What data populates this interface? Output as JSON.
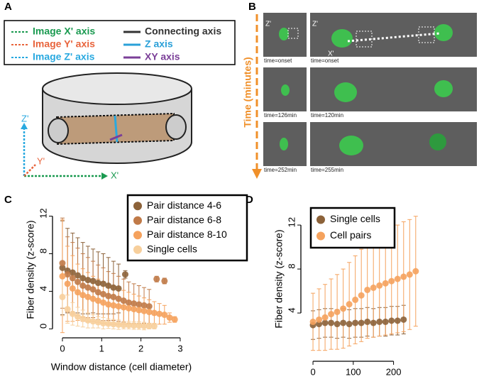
{
  "panels": {
    "labels": [
      "A",
      "B",
      "C",
      "D"
    ],
    "a": {
      "legend": [
        "Image X' axis",
        "Image Y' axis",
        "Image Z' axis",
        "Connecting axis",
        "Z axis",
        "XY axis"
      ],
      "axes": [
        "Z'",
        "Y'",
        "X'"
      ]
    },
    "b": {
      "time_axis": "Time (minutes)",
      "image_axes": [
        "Z'",
        "Z'",
        "X'"
      ],
      "times": [
        "time=onset",
        "time=onset",
        "time=126min",
        "time=120min",
        "time=252min",
        "time=255min"
      ]
    }
  },
  "chart_data": [
    {
      "type": "scatter",
      "ylabel": "Fiber density (z-score)",
      "xlabel": "Window distance (cell diameter)",
      "xlim": [
        -0.18,
        3.2
      ],
      "ylim": [
        -0.5,
        13.1
      ],
      "xticks": [
        0,
        1,
        2,
        3
      ],
      "yticks": [
        0,
        4,
        8,
        12
      ],
      "legend": "upper right",
      "series": [
        {
          "name": "Pair distance 4-6",
          "color": "#8c6239",
          "x": [
            0,
            0.13,
            0.26,
            0.39,
            0.52,
            0.65,
            0.78,
            0.91,
            1.04,
            1.17,
            1.3,
            1.43,
            1.6
          ],
          "values": [
            6.5,
            6.2,
            6.0,
            5.7,
            5.4,
            5.2,
            5.1,
            4.9,
            4.8,
            4.6,
            4.4,
            4.3,
            5.8
          ],
          "errors": [
            5.0,
            4.5,
            4.2,
            4.0,
            3.8,
            3.6,
            3.4,
            3.3,
            3.2,
            3.0,
            2.8,
            2.6,
            0.4
          ]
        },
        {
          "name": "Pair distance 6-8",
          "color": "#c07a48",
          "x": [
            0,
            0.13,
            0.26,
            0.39,
            0.52,
            0.65,
            0.78,
            0.91,
            1.04,
            1.17,
            1.3,
            1.43,
            1.56,
            1.69,
            1.82,
            1.95,
            2.08,
            2.21,
            2.4,
            2.6
          ],
          "values": [
            7.0,
            5.8,
            5.4,
            5.0,
            4.6,
            4.4,
            4.2,
            3.9,
            3.7,
            3.5,
            3.4,
            3.2,
            3.0,
            2.8,
            2.7,
            2.6,
            2.5,
            2.4,
            5.3,
            5.1
          ],
          "errors": [
            4.8,
            4.0,
            3.8,
            3.6,
            3.4,
            3.2,
            3.0,
            2.9,
            2.8,
            2.6,
            2.5,
            2.4,
            2.3,
            2.2,
            2.1,
            2.0,
            1.9,
            1.8,
            0.3,
            0.3
          ]
        },
        {
          "name": "Pair distance 8-10",
          "color": "#f5a25d",
          "x": [
            0,
            0.13,
            0.26,
            0.39,
            0.52,
            0.65,
            0.78,
            0.91,
            1.04,
            1.17,
            1.3,
            1.43,
            1.56,
            1.69,
            1.82,
            1.95,
            2.08,
            2.21,
            2.34,
            2.47,
            2.6,
            2.73,
            2.86
          ],
          "values": [
            5.6,
            4.8,
            4.3,
            3.9,
            3.6,
            3.4,
            3.2,
            3.0,
            2.8,
            2.6,
            2.5,
            2.4,
            2.3,
            2.2,
            2.1,
            2.0,
            1.9,
            1.8,
            1.7,
            1.6,
            1.5,
            1.2,
            1.0
          ],
          "errors": [
            6.0,
            4.0,
            3.5,
            3.0,
            2.8,
            2.6,
            2.4,
            2.3,
            2.2,
            2.1,
            2.0,
            1.9,
            1.8,
            1.7,
            1.6,
            1.5,
            1.4,
            1.3,
            1.2,
            1.1,
            1.0,
            0.5,
            0.3
          ]
        },
        {
          "name": "Single cells",
          "color": "#f7cf9c",
          "x": [
            0,
            0.13,
            0.26,
            0.39,
            0.52,
            0.65,
            0.78,
            0.91,
            1.04,
            1.17,
            1.3,
            1.43,
            1.56,
            1.69,
            1.82,
            1.95,
            2.08,
            2.21,
            2.34
          ],
          "values": [
            3.4,
            2.1,
            1.6,
            1.3,
            1.1,
            0.9,
            0.8,
            0.7,
            0.6,
            0.55,
            0.5,
            0.45,
            0.4,
            0.4,
            0.35,
            0.35,
            0.3,
            0.3,
            0.3
          ],
          "errors": [
            2.0,
            1.5,
            1.2,
            1.0,
            0.9,
            0.8,
            0.7,
            0.6,
            0.6,
            0.5,
            0.5,
            0.5,
            0.4,
            0.4,
            0.4,
            0.4,
            0.4,
            0.3,
            0.3
          ]
        }
      ]
    },
    {
      "type": "scatter",
      "ylabel": "Fiber density (z-score)",
      "xlabel": "Time (minutes)",
      "xlim": [
        -23,
        280
      ],
      "ylim": [
        0,
        14.2
      ],
      "xticks": [
        0,
        100,
        200
      ],
      "yticks": [
        4,
        8,
        12
      ],
      "legend": "upper left",
      "series": [
        {
          "name": "Single cells",
          "color": "#8c6239",
          "x": [
            0,
            15,
            30,
            45,
            60,
            75,
            90,
            105,
            120,
            135,
            150,
            165,
            180,
            195,
            210,
            225
          ],
          "values": [
            2.9,
            3.0,
            3.1,
            3.1,
            3.0,
            3.1,
            3.0,
            3.1,
            3.1,
            3.2,
            3.1,
            3.2,
            3.2,
            3.3,
            3.3,
            3.4
          ],
          "errors": [
            1.3,
            1.3,
            1.3,
            1.3,
            1.3,
            1.3,
            1.3,
            1.3,
            1.3,
            1.3,
            1.3,
            1.3,
            1.3,
            1.3,
            1.3,
            1.3
          ]
        },
        {
          "name": "Cell pairs",
          "color": "#f5a25d",
          "x": [
            0,
            15,
            30,
            45,
            60,
            75,
            90,
            105,
            120,
            135,
            150,
            165,
            180,
            195,
            210,
            225,
            240,
            255
          ],
          "values": [
            3.2,
            3.4,
            3.6,
            3.9,
            4.1,
            4.4,
            4.8,
            5.2,
            5.6,
            6.1,
            6.3,
            6.5,
            6.7,
            6.9,
            7.1,
            7.3,
            7.5,
            7.8
          ],
          "errors": [
            2.6,
            2.8,
            3.0,
            3.2,
            3.4,
            3.6,
            3.8,
            4.0,
            4.2,
            4.4,
            4.5,
            4.6,
            4.7,
            4.8,
            4.9,
            5.0,
            5.0,
            5.0
          ]
        }
      ]
    }
  ]
}
